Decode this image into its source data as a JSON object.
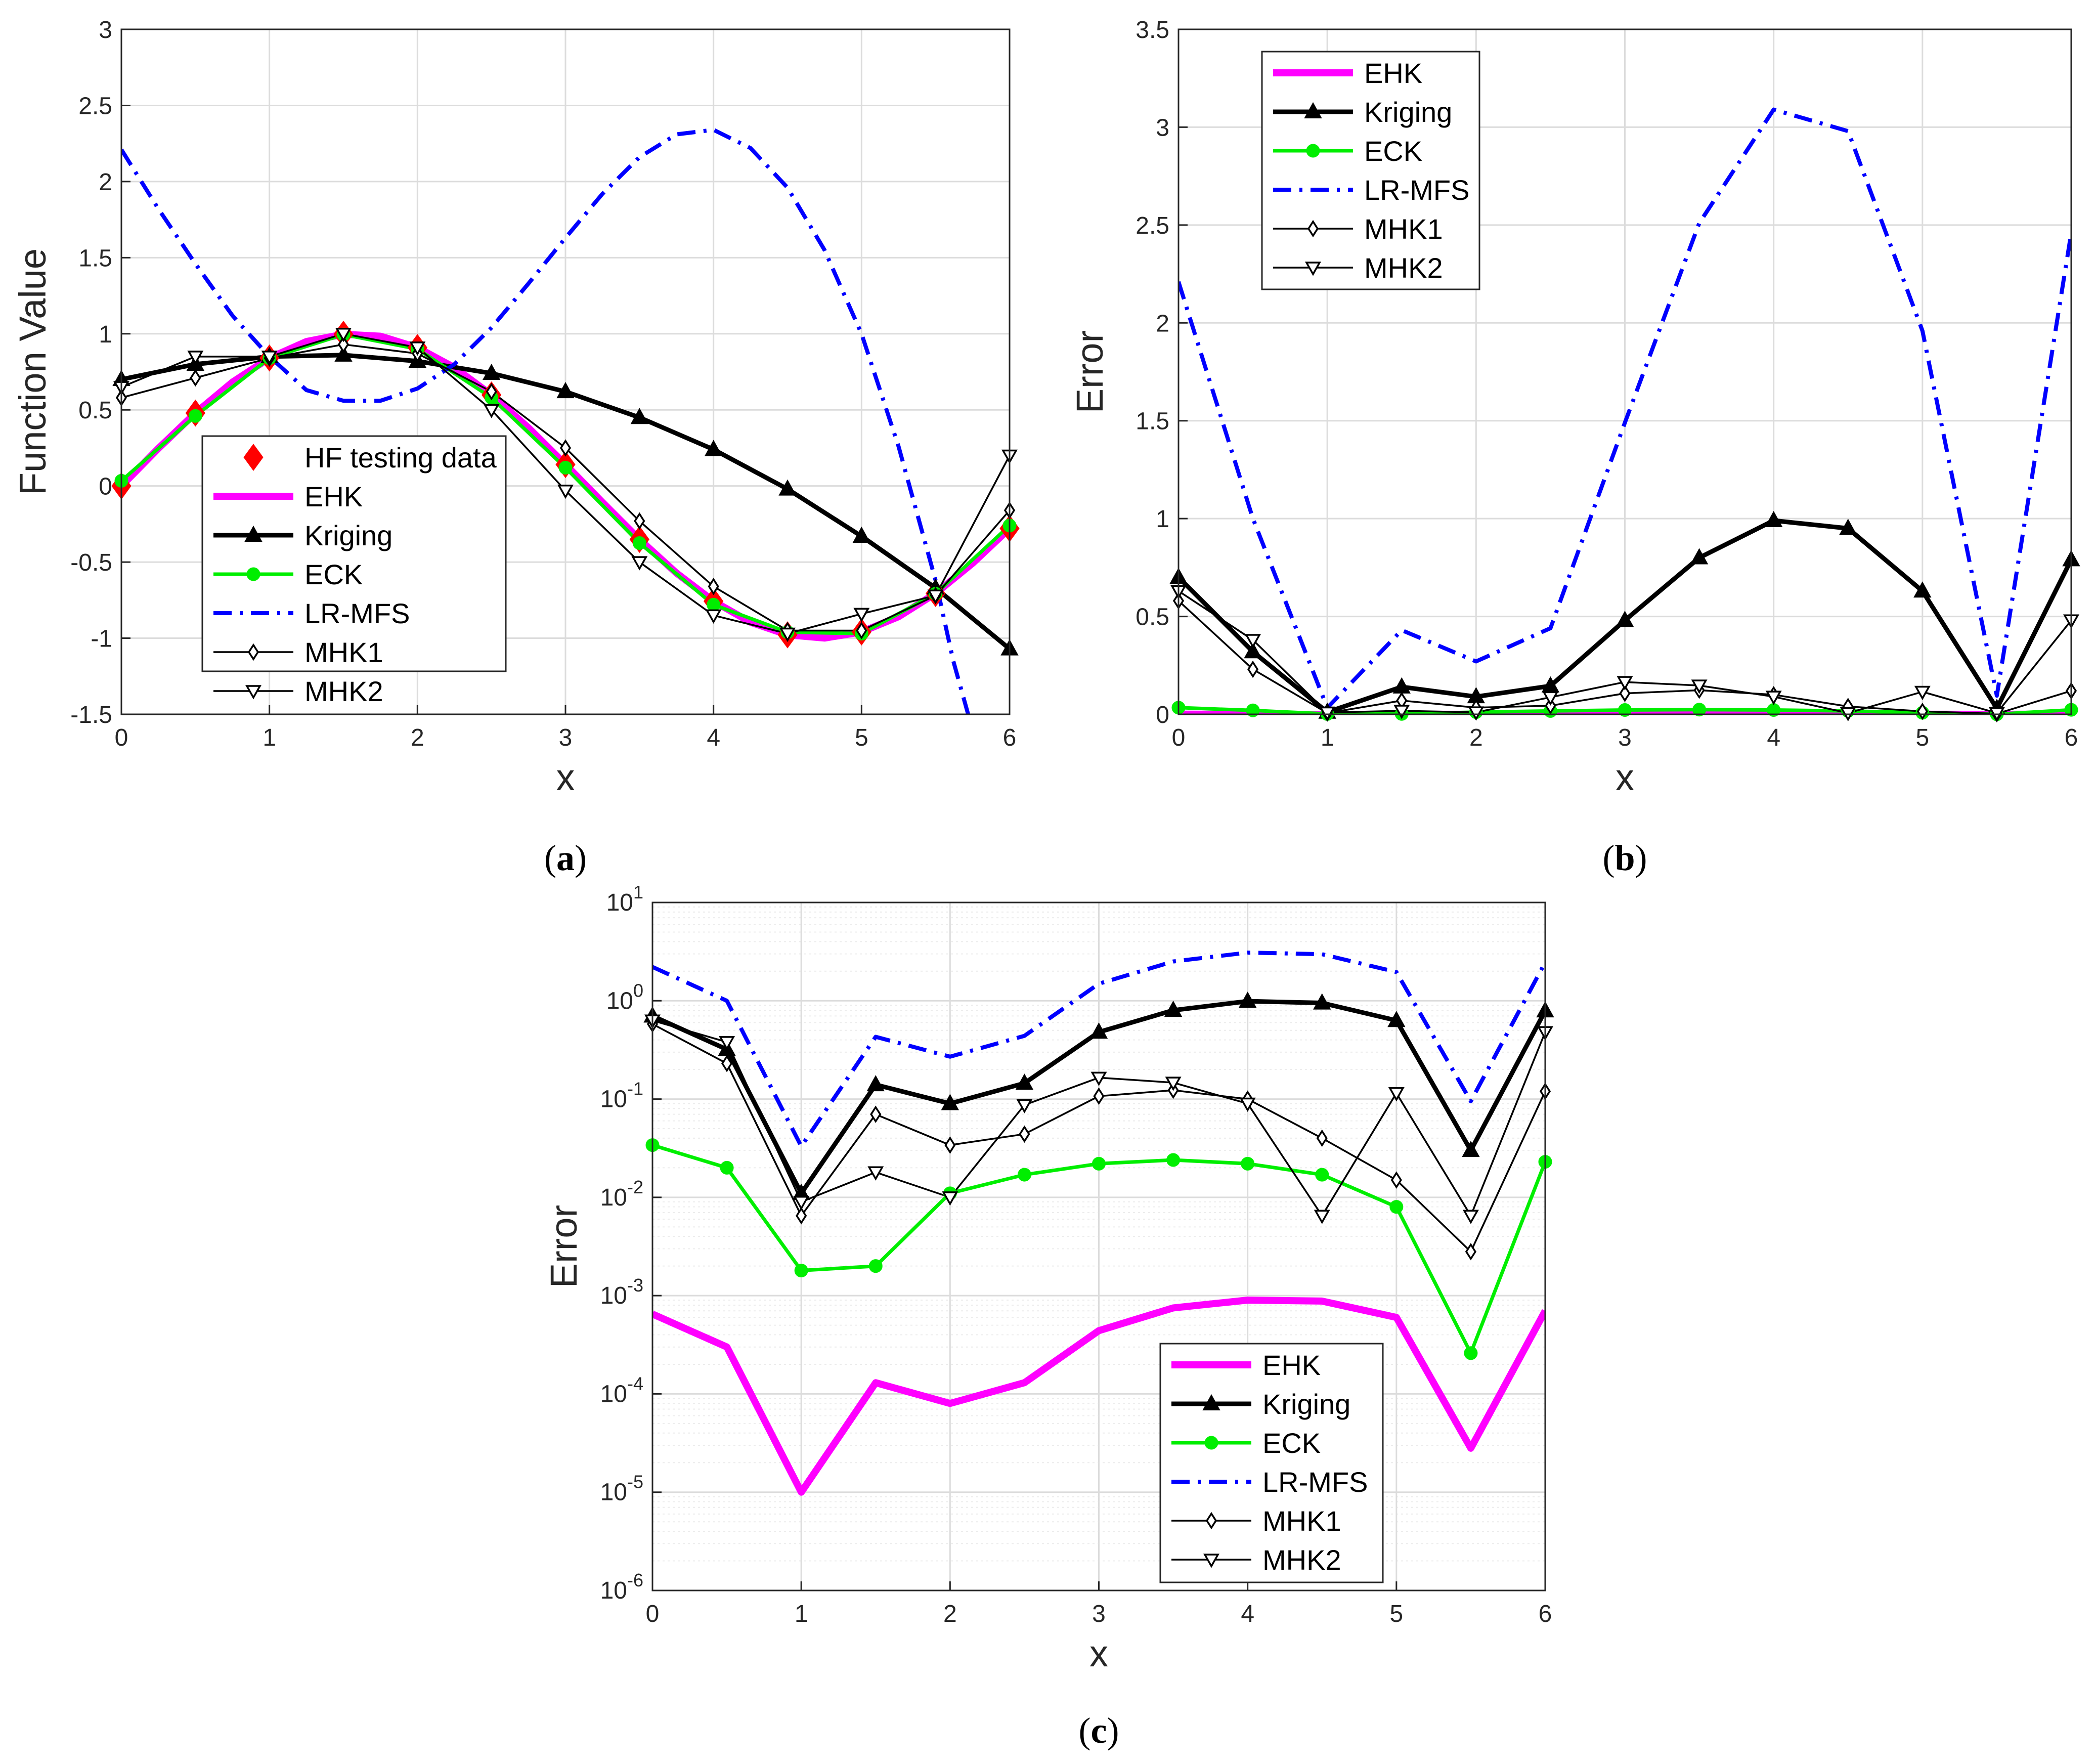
{
  "chart_data": [
    {
      "panel": "a",
      "type": "line",
      "caption": "(a)",
      "xlabel": "x",
      "ylabel": "Function Value",
      "xlim": [
        0,
        6
      ],
      "ylim": [
        -1.5,
        3
      ],
      "xticks": [
        "0",
        "1",
        "2",
        "3",
        "4",
        "5",
        "6"
      ],
      "yticks": [
        "-1.5",
        "-1",
        "-0.5",
        "0",
        "0.5",
        "1",
        "1.5",
        "2",
        "2.5",
        "3"
      ],
      "legend_position": "lower-left",
      "x": [
        0,
        0.5,
        1,
        1.5,
        2,
        2.5,
        3,
        3.5,
        4,
        4.5,
        5,
        5.5,
        6
      ],
      "series": [
        {
          "name": "HF testing data",
          "style": "marker-diamond",
          "color": "#ff0000",
          "values": [
            0,
            0.479,
            0.841,
            0.997,
            0.909,
            0.598,
            0.141,
            -0.351,
            -0.757,
            -0.978,
            -0.959,
            -0.706,
            -0.279
          ]
        },
        {
          "name": "EHK",
          "style": "thick-line",
          "color": "#ff00ff",
          "curve": [
            [
              0,
              0
            ],
            [
              0.25,
              0.247
            ],
            [
              0.5,
              0.479
            ],
            [
              0.75,
              0.682
            ],
            [
              1,
              0.841
            ],
            [
              1.25,
              0.949
            ],
            [
              1.5,
              0.997
            ],
            [
              1.75,
              0.984
            ],
            [
              2,
              0.909
            ],
            [
              2.25,
              0.778
            ],
            [
              2.5,
              0.598
            ],
            [
              2.75,
              0.382
            ],
            [
              3,
              0.141
            ],
            [
              3.25,
              -0.108
            ],
            [
              3.5,
              -0.351
            ],
            [
              3.75,
              -0.572
            ],
            [
              4,
              -0.757
            ],
            [
              4.25,
              -0.895
            ],
            [
              4.5,
              -0.978
            ],
            [
              4.75,
              -0.999
            ],
            [
              5,
              -0.959
            ],
            [
              5.25,
              -0.859
            ],
            [
              5.5,
              -0.706
            ],
            [
              5.75,
              -0.508
            ],
            [
              6,
              -0.279
            ]
          ]
        },
        {
          "name": "Kriging",
          "style": "line-filled-triangle",
          "color": "#000000",
          "values": [
            0.7,
            0.8,
            0.85,
            0.86,
            0.82,
            0.74,
            0.62,
            0.45,
            0.24,
            -0.02,
            -0.33,
            -0.67,
            -1.07
          ]
        },
        {
          "name": "ECK",
          "style": "line-filled-circle",
          "color": "#00ee00",
          "values": [
            0.034,
            0.46,
            0.84,
            0.995,
            0.9,
            0.58,
            0.12,
            -0.375,
            -0.78,
            -0.96,
            -0.97,
            -0.708,
            -0.26
          ]
        },
        {
          "name": "LR-MFS",
          "style": "dashdot",
          "color": "#0000ff",
          "curve": [
            [
              0,
              2.21
            ],
            [
              0.25,
              1.82
            ],
            [
              0.5,
              1.46
            ],
            [
              0.75,
              1.12
            ],
            [
              1,
              0.85
            ],
            [
              1.25,
              0.63
            ],
            [
              1.5,
              0.56
            ],
            [
              1.75,
              0.56
            ],
            [
              2,
              0.64
            ],
            [
              2.25,
              0.8
            ],
            [
              2.5,
              1.04
            ],
            [
              2.75,
              1.33
            ],
            [
              3,
              1.63
            ],
            [
              3.25,
              1.92
            ],
            [
              3.5,
              2.16
            ],
            [
              3.75,
              2.31
            ],
            [
              4,
              2.34
            ],
            [
              4.25,
              2.22
            ],
            [
              4.5,
              1.96
            ],
            [
              4.75,
              1.55
            ],
            [
              5,
              1.0
            ],
            [
              5.25,
              0.26
            ],
            [
              5.5,
              -0.62
            ],
            [
              5.62,
              -1.15
            ],
            [
              5.72,
              -1.5
            ]
          ]
        },
        {
          "name": "MHK1",
          "style": "line-open-diamond",
          "color": "#000000",
          "values": [
            0.58,
            0.71,
            0.84,
            0.93,
            0.87,
            0.62,
            0.25,
            -0.23,
            -0.66,
            -0.95,
            -0.95,
            -0.72,
            -0.16
          ]
        },
        {
          "name": "MHK2",
          "style": "line-open-triangle-down",
          "color": "#000000",
          "values": [
            0.65,
            0.85,
            0.85,
            1.0,
            0.91,
            0.5,
            -0.03,
            -0.5,
            -0.85,
            -0.97,
            -0.84,
            -0.72,
            0.2
          ]
        }
      ]
    },
    {
      "panel": "b",
      "type": "line",
      "caption": "(b)",
      "xlabel": "x",
      "ylabel": "Error",
      "xlim": [
        0,
        6
      ],
      "ylim": [
        0,
        3.5
      ],
      "xticks": [
        "0",
        "1",
        "2",
        "3",
        "4",
        "5",
        "6"
      ],
      "yticks": [
        "0",
        "0.5",
        "1",
        "1.5",
        "2",
        "2.5",
        "3",
        "3.5"
      ],
      "legend_position": "top-left",
      "x": [
        0,
        0.5,
        1,
        1.5,
        2,
        2.5,
        3,
        3.5,
        4,
        4.5,
        5,
        5.5,
        6
      ],
      "series": [
        {
          "name": "EHK",
          "style": "thick-line",
          "color": "#ff00ff",
          "values": [
            0.00065,
            0.0003,
            1e-05,
            0.00013,
            8e-05,
            0.00013,
            0.00044,
            0.00075,
            0.0009,
            0.00088,
            0.0006,
            2.8e-05,
            0.0007
          ]
        },
        {
          "name": "Kriging",
          "style": "line-filled-triangle",
          "color": "#000000",
          "values": [
            0.7,
            0.32,
            0.011,
            0.14,
            0.09,
            0.145,
            0.48,
            0.8,
            0.99,
            0.95,
            0.63,
            0.03,
            0.79
          ]
        },
        {
          "name": "ECK",
          "style": "line-filled-circle",
          "color": "#00ee00",
          "values": [
            0.034,
            0.02,
            0.0018,
            0.002,
            0.011,
            0.017,
            0.022,
            0.024,
            0.022,
            0.017,
            0.008,
            0.00026,
            0.023
          ]
        },
        {
          "name": "LR-MFS",
          "style": "dashdot",
          "color": "#0000ff",
          "values": [
            2.21,
            1.0,
            0.033,
            0.43,
            0.27,
            0.44,
            1.49,
            2.51,
            3.09,
            2.98,
            1.96,
            0.095,
            2.46
          ]
        },
        {
          "name": "MHK1",
          "style": "line-open-diamond",
          "color": "#000000",
          "values": [
            0.58,
            0.23,
            0.0065,
            0.07,
            0.034,
            0.044,
            0.107,
            0.123,
            0.1,
            0.04,
            0.015,
            0.0028,
            0.12
          ]
        },
        {
          "name": "MHK2",
          "style": "line-open-triangle-down",
          "color": "#000000",
          "values": [
            0.63,
            0.38,
            0.009,
            0.018,
            0.01,
            0.087,
            0.165,
            0.147,
            0.09,
            0.0065,
            0.115,
            0.0065,
            0.48
          ]
        }
      ]
    },
    {
      "panel": "c",
      "type": "line",
      "yscale": "log",
      "caption": "(c)",
      "xlabel": "x",
      "ylabel": "Error",
      "xlim": [
        0,
        6
      ],
      "ylim": [
        1e-06,
        10
      ],
      "xticks": [
        "0",
        "1",
        "2",
        "3",
        "4",
        "5",
        "6"
      ],
      "ytick_base": "10",
      "ytick_exponents": [
        "-6",
        "-5",
        "-4",
        "-3",
        "-2",
        "-1",
        "0",
        "1"
      ],
      "legend_position": "bottom-right",
      "x": [
        0,
        0.5,
        1,
        1.5,
        2,
        2.5,
        3,
        3.5,
        4,
        4.5,
        5,
        5.5,
        6
      ],
      "series": [
        {
          "name": "EHK",
          "style": "thick-line",
          "color": "#ff00ff",
          "values": [
            0.00065,
            0.0003,
            1e-05,
            0.00013,
            8e-05,
            0.00013,
            0.00044,
            0.00075,
            0.0009,
            0.00088,
            0.0006,
            2.8e-05,
            0.0007
          ]
        },
        {
          "name": "Kriging",
          "style": "line-filled-triangle",
          "color": "#000000",
          "values": [
            0.7,
            0.32,
            0.011,
            0.14,
            0.09,
            0.145,
            0.48,
            0.8,
            0.99,
            0.95,
            0.63,
            0.03,
            0.79
          ]
        },
        {
          "name": "ECK",
          "style": "line-filled-circle",
          "color": "#00ee00",
          "values": [
            0.034,
            0.02,
            0.0018,
            0.002,
            0.011,
            0.017,
            0.022,
            0.024,
            0.022,
            0.017,
            0.008,
            0.00026,
            0.023
          ]
        },
        {
          "name": "LR-MFS",
          "style": "dashdot",
          "color": "#0000ff",
          "values": [
            2.21,
            1.0,
            0.033,
            0.43,
            0.27,
            0.44,
            1.49,
            2.51,
            3.09,
            2.98,
            1.96,
            0.095,
            2.46
          ]
        },
        {
          "name": "MHK1",
          "style": "line-open-diamond",
          "color": "#000000",
          "values": [
            0.58,
            0.23,
            0.0065,
            0.07,
            0.034,
            0.044,
            0.107,
            0.123,
            0.1,
            0.04,
            0.015,
            0.0028,
            0.12
          ]
        },
        {
          "name": "MHK2",
          "style": "line-open-triangle-down",
          "color": "#000000",
          "values": [
            0.63,
            0.38,
            0.009,
            0.018,
            0.01,
            0.087,
            0.165,
            0.147,
            0.09,
            0.0065,
            0.115,
            0.0065,
            0.48
          ]
        }
      ]
    }
  ]
}
